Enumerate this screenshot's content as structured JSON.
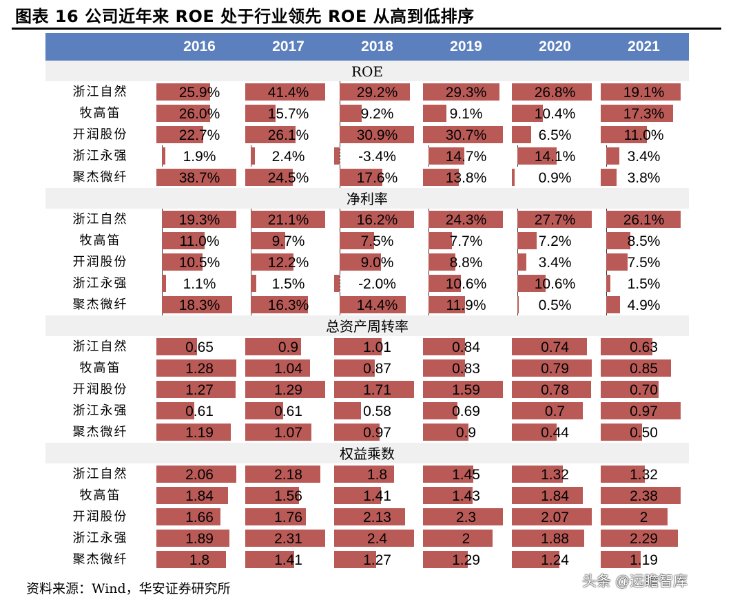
{
  "title": "图表 16 公司近年来 ROE 处于行业领先 ROE 从高到低排序",
  "source": "资料来源：Wind，华安证券研究所",
  "watermark": "头条 @远瞻智库",
  "colors": {
    "header": "#5B80BD",
    "bar": "#BA5A57",
    "section": "#F0F0F0"
  },
  "chart_data": {
    "type": "table",
    "columns": [
      "2016",
      "2017",
      "2018",
      "2019",
      "2020",
      "2021"
    ],
    "companies": [
      "浙江自然",
      "牧高笛",
      "开润股份",
      "浙江永强",
      "聚杰微纤"
    ],
    "sections": [
      {
        "name": "ROE",
        "rows": [
          [
            "25.9%",
            "41.4%",
            "29.2%",
            "29.3%",
            "26.8%",
            "19.1%"
          ],
          [
            "26.0%",
            "15.7%",
            "9.2%",
            "9.1%",
            "10.4%",
            "17.3%"
          ],
          [
            "22.7%",
            "26.1%",
            "30.9%",
            "30.7%",
            "6.5%",
            "11.0%"
          ],
          [
            "1.9%",
            "2.4%",
            "-3.4%",
            "14.7%",
            "14.1%",
            "3.4%"
          ],
          [
            "38.7%",
            "24.5%",
            "17.6%",
            "13.8%",
            "0.9%",
            "3.8%"
          ]
        ]
      },
      {
        "name": "净利率",
        "rows": [
          [
            "19.3%",
            "21.1%",
            "16.2%",
            "24.3%",
            "27.7%",
            "26.1%"
          ],
          [
            "11.0%",
            "9.7%",
            "7.5%",
            "7.7%",
            "7.2%",
            "8.5%"
          ],
          [
            "10.5%",
            "12.2%",
            "9.0%",
            "8.8%",
            "3.4%",
            "7.5%"
          ],
          [
            "1.1%",
            "1.5%",
            "-2.0%",
            "10.6%",
            "10.6%",
            "1.5%"
          ],
          [
            "18.3%",
            "16.3%",
            "14.4%",
            "11.9%",
            "0.5%",
            "4.9%"
          ]
        ]
      },
      {
        "name": "总资产周转率",
        "rows": [
          [
            "0.65",
            "0.9",
            "1.01",
            "0.84",
            "0.74",
            "0.63"
          ],
          [
            "1.28",
            "1.04",
            "0.87",
            "0.83",
            "0.79",
            "0.85"
          ],
          [
            "1.27",
            "1.29",
            "1.71",
            "1.59",
            "0.78",
            "0.70"
          ],
          [
            "0.61",
            "0.61",
            "0.58",
            "0.69",
            "0.7",
            "0.97"
          ],
          [
            "1.19",
            "1.07",
            "0.97",
            "0.9",
            "0.44",
            "0.50"
          ]
        ]
      },
      {
        "name": "权益乘数",
        "rows": [
          [
            "2.06",
            "2.18",
            "1.8",
            "1.45",
            "1.32",
            "1.32"
          ],
          [
            "1.84",
            "1.56",
            "1.41",
            "1.43",
            "1.84",
            "2.38"
          ],
          [
            "1.66",
            "1.76",
            "2.13",
            "2.3",
            "2.07",
            "2"
          ],
          [
            "1.89",
            "2.31",
            "2.4",
            "2",
            "1.88",
            "2.29"
          ],
          [
            "1.8",
            "1.41",
            "1.27",
            "1.29",
            "1.24",
            "1.19"
          ]
        ]
      }
    ]
  }
}
